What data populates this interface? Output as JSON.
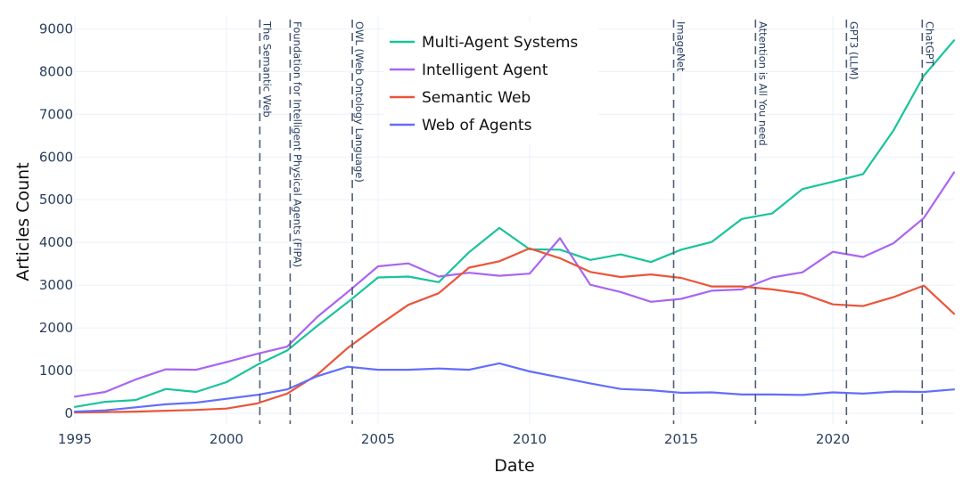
{
  "chart_data": {
    "type": "line",
    "title": "",
    "xlabel": "Date",
    "ylabel": "Articles Count",
    "xlim": [
      1995,
      2024
    ],
    "ylim": [
      -250,
      9300
    ],
    "x_ticks": [
      1995,
      2000,
      2005,
      2010,
      2015,
      2020
    ],
    "y_ticks": [
      0,
      1000,
      2000,
      3000,
      4000,
      5000,
      6000,
      7000,
      8000,
      9000
    ],
    "x": [
      1995,
      1996,
      1997,
      1998,
      1999,
      2000,
      2001,
      2002,
      2003,
      2004,
      2005,
      2006,
      2007,
      2008,
      2009,
      2010,
      2011,
      2012,
      2013,
      2014,
      2015,
      2016,
      2017,
      2018,
      2019,
      2020,
      2021,
      2022,
      2023,
      2024
    ],
    "series": [
      {
        "name": "Multi-Agent Systems",
        "color": "#18c49a",
        "values": [
          150,
          270,
          310,
          570,
          500,
          730,
          1130,
          1470,
          2050,
          2600,
          3180,
          3200,
          3070,
          3770,
          4340,
          3840,
          3830,
          3590,
          3720,
          3540,
          3830,
          4010,
          4550,
          4680,
          5250,
          5420,
          5600,
          6620,
          7900,
          8730
        ]
      },
      {
        "name": "Intelligent Agent",
        "color": "#a965f2",
        "values": [
          390,
          500,
          790,
          1030,
          1020,
          1200,
          1390,
          1560,
          2260,
          2840,
          3440,
          3510,
          3200,
          3290,
          3220,
          3270,
          4100,
          3010,
          2840,
          2610,
          2680,
          2870,
          2900,
          3180,
          3300,
          3780,
          3660,
          3980,
          4570,
          5640
        ]
      },
      {
        "name": "Semantic Web",
        "color": "#ea553b",
        "values": [
          20,
          30,
          40,
          60,
          80,
          110,
          230,
          460,
          910,
          1530,
          2050,
          2540,
          2810,
          3410,
          3560,
          3860,
          3630,
          3310,
          3190,
          3250,
          3170,
          2970,
          2970,
          2900,
          2800,
          2550,
          2510,
          2720,
          2990,
          2330
        ]
      },
      {
        "name": "Web of Agents",
        "color": "#636efa",
        "values": [
          40,
          70,
          140,
          210,
          250,
          340,
          430,
          560,
          870,
          1090,
          1020,
          1020,
          1050,
          1020,
          1170,
          980,
          840,
          700,
          570,
          540,
          480,
          490,
          440,
          440,
          430,
          490,
          460,
          510,
          500,
          560
        ]
      }
    ],
    "annotations": [
      {
        "x": 2001.1,
        "label": "The Semantic Web"
      },
      {
        "x": 2002.1,
        "label": "Foundation for Intelligent Physical Agents (FIPA)"
      },
      {
        "x": 2004.15,
        "label": "OWL (Web Ontology Language)"
      },
      {
        "x": 2014.75,
        "label": "ImageNet"
      },
      {
        "x": 2017.45,
        "label": "Attention is All You need"
      },
      {
        "x": 2020.45,
        "label": "GPT3 (LLM)"
      },
      {
        "x": 2022.95,
        "label": "ChatGPT"
      }
    ],
    "legend_position": "top-center"
  }
}
